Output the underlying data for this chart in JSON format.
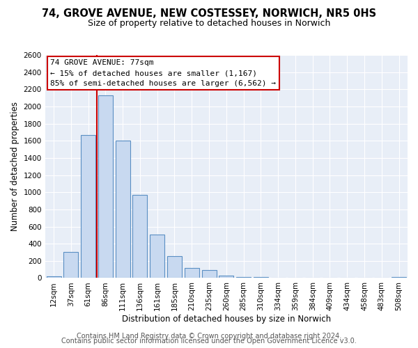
{
  "title": "74, GROVE AVENUE, NEW COSTESSEY, NORWICH, NR5 0HS",
  "subtitle": "Size of property relative to detached houses in Norwich",
  "xlabel": "Distribution of detached houses by size in Norwich",
  "ylabel": "Number of detached properties",
  "bar_labels": [
    "12sqm",
    "37sqm",
    "61sqm",
    "86sqm",
    "111sqm",
    "136sqm",
    "161sqm",
    "185sqm",
    "210sqm",
    "235sqm",
    "260sqm",
    "285sqm",
    "310sqm",
    "334sqm",
    "359sqm",
    "384sqm",
    "409sqm",
    "434sqm",
    "458sqm",
    "483sqm",
    "508sqm"
  ],
  "bar_values": [
    20,
    300,
    1670,
    2130,
    1600,
    970,
    505,
    255,
    120,
    95,
    30,
    15,
    8,
    5,
    4,
    3,
    2,
    2,
    2,
    2,
    15
  ],
  "bar_color": "#c8d9f0",
  "bar_edge_color": "#5a8fc3",
  "vline_color": "#cc0000",
  "vline_pos": 2.5,
  "annotation_title": "74 GROVE AVENUE: 77sqm",
  "annotation_line1": "← 15% of detached houses are smaller (1,167)",
  "annotation_line2": "85% of semi-detached houses are larger (6,562) →",
  "annotation_box_facecolor": "#ffffff",
  "annotation_box_edgecolor": "#cc0000",
  "footer1": "Contains HM Land Registry data © Crown copyright and database right 2024.",
  "footer2": "Contains public sector information licensed under the Open Government Licence v3.0.",
  "ylim": [
    0,
    2600
  ],
  "yticks": [
    0,
    200,
    400,
    600,
    800,
    1000,
    1200,
    1400,
    1600,
    1800,
    2000,
    2200,
    2400,
    2600
  ],
  "fig_bg": "#ffffff",
  "plot_bg": "#e8eef7",
  "grid_color": "#ffffff",
  "title_fontsize": 10.5,
  "subtitle_fontsize": 9,
  "xlabel_fontsize": 8.5,
  "ylabel_fontsize": 8.5,
  "tick_fontsize": 7.5,
  "annotation_fontsize": 8,
  "footer_fontsize": 7
}
